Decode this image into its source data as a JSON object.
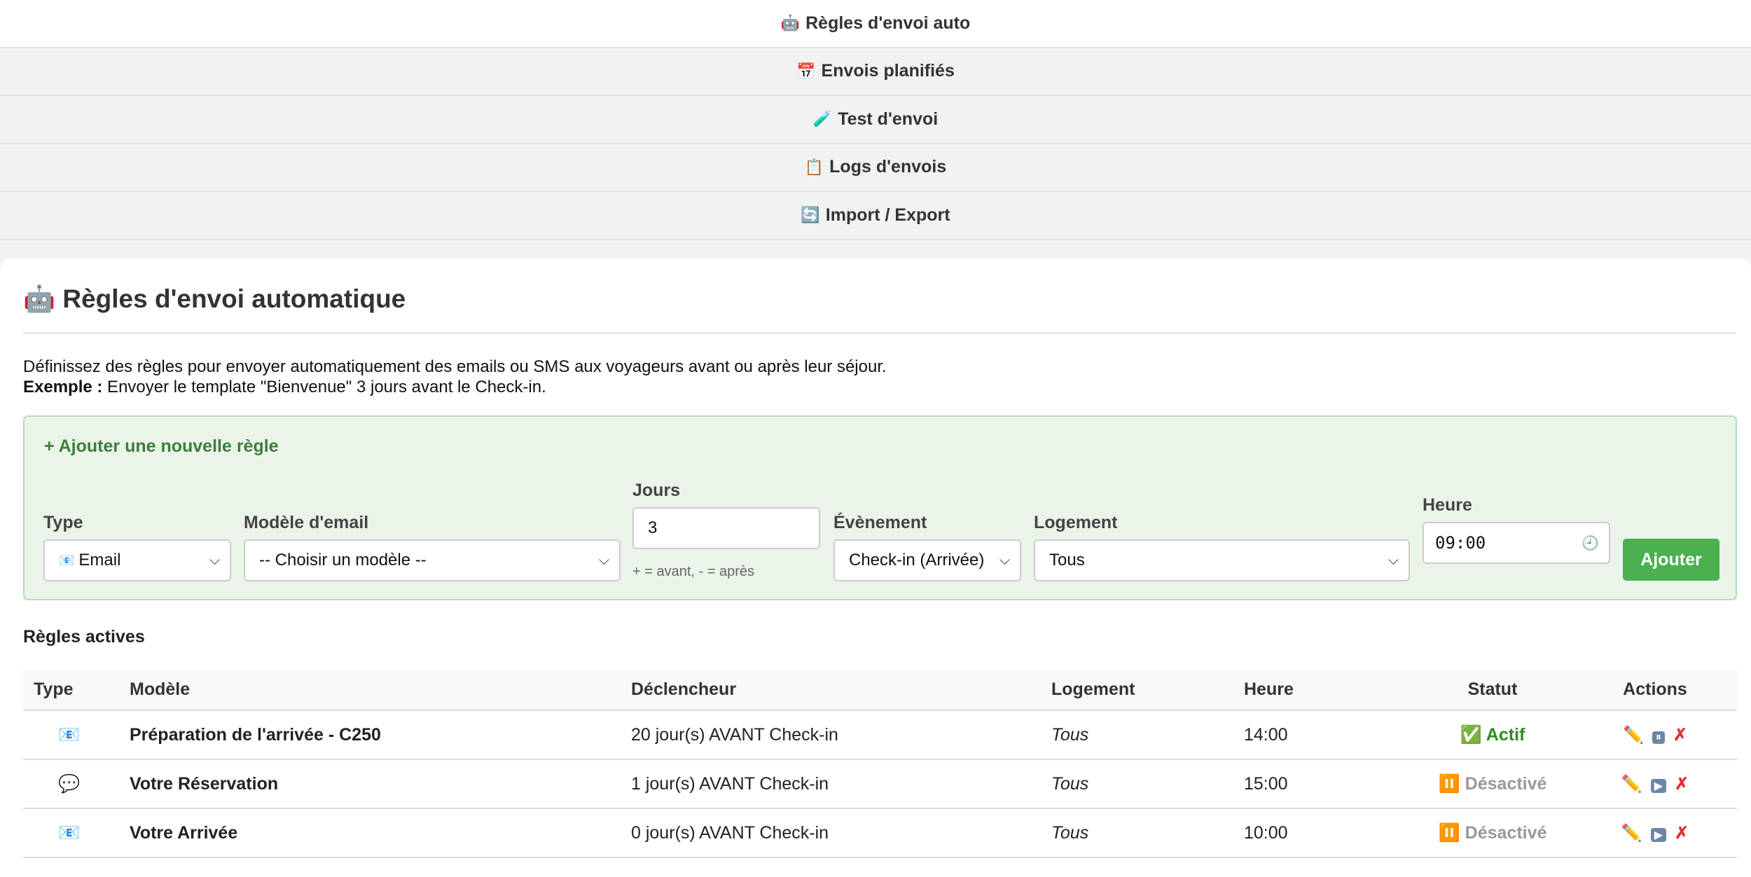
{
  "tabs": [
    {
      "icon": "🤖",
      "label": "Règles d'envoi auto",
      "active": true
    },
    {
      "icon": "📅",
      "label": "Envois planifiés"
    },
    {
      "icon": "🧪",
      "label": "Test d'envoi"
    },
    {
      "icon": "📋",
      "label": "Logs d'envois"
    },
    {
      "icon": "🔄",
      "label": "Import / Export"
    }
  ],
  "page": {
    "icon": "🤖",
    "title": "Règles d'envoi automatique",
    "description": "Définissez des règles pour envoyer automatiquement des emails ou SMS aux voyageurs avant ou après leur séjour.",
    "example_label": "Exemple :",
    "example_text": " Envoyer le template \"Bienvenue\" 3 jours avant le Check-in."
  },
  "form": {
    "title": "+ Ajouter une nouvelle règle",
    "type_label": "Type",
    "type_value": "Email",
    "type_icon": "📧",
    "model_label": "Modèle d'email",
    "model_value": "-- Choisir un modèle --",
    "days_label": "Jours",
    "days_value": "3",
    "days_hint": "+ = avant, - = après",
    "event_label": "Évènement",
    "event_value": "Check-in (Arrivée)",
    "lodging_label": "Logement",
    "lodging_value": "Tous",
    "time_label": "Heure",
    "time_value": "09:00",
    "submit": "Ajouter"
  },
  "rules": {
    "title": "Règles actives",
    "headers": [
      "Type",
      "Modèle",
      "Déclencheur",
      "Logement",
      "Heure",
      "Statut",
      "Actions"
    ],
    "rows": [
      {
        "type_icon": "📧",
        "model": "Préparation de l'arrivée - C250",
        "trigger": "20 jour(s) AVANT Check-in",
        "lodging": "Tous",
        "time": "14:00",
        "status_icon": "✅",
        "status": "Actif",
        "toggle_icon": "⏸"
      },
      {
        "type_icon": "💬",
        "model": "Votre Réservation",
        "trigger": "1 jour(s) AVANT Check-in",
        "lodging": "Tous",
        "time": "15:00",
        "status_icon": "⏸️",
        "status": "Désactivé",
        "toggle_icon": "▶"
      },
      {
        "type_icon": "📧",
        "model": "Votre Arrivée",
        "trigger": "0 jour(s) AVANT Check-in",
        "lodging": "Tous",
        "time": "10:00",
        "status_icon": "⏸️",
        "status": "Désactivé",
        "toggle_icon": "▶"
      }
    ]
  },
  "colors": {
    "accent": "#4caf50",
    "active": "#2e8b22",
    "delete": "#dd3333"
  }
}
